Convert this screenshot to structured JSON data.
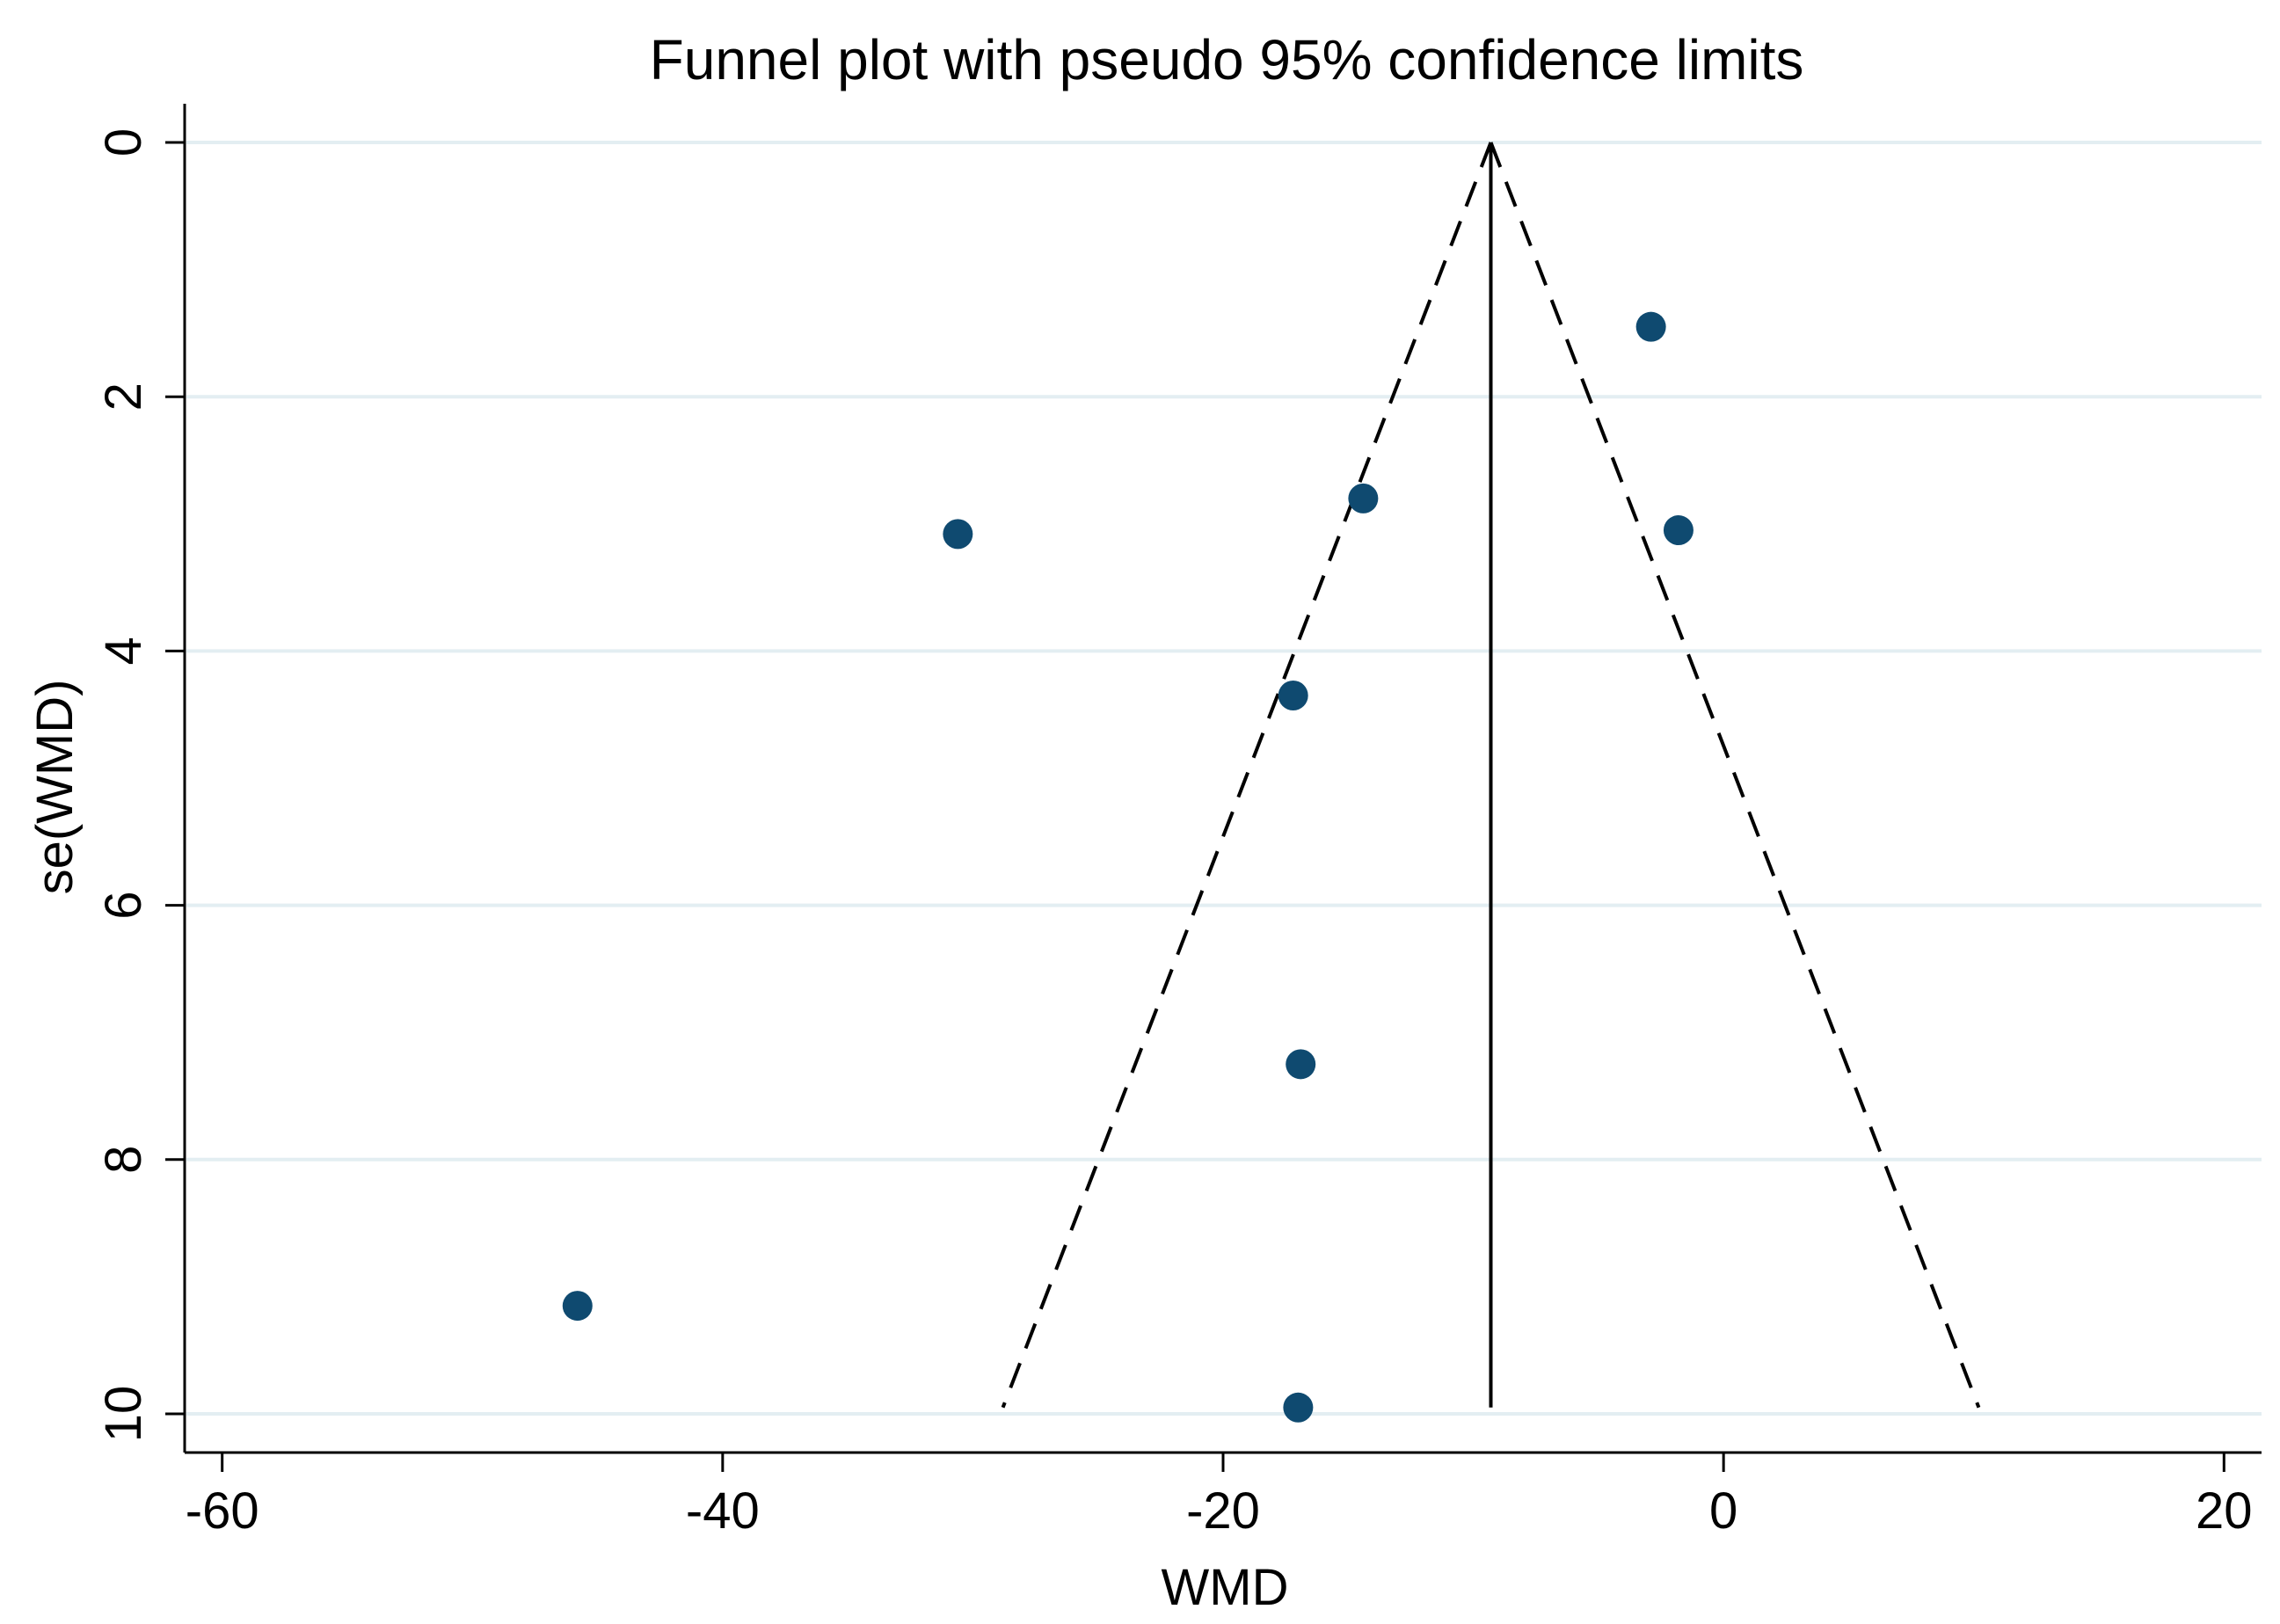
{
  "chart_data": {
    "type": "scatter",
    "title": "Funnel plot with pseudo 95% confidence limits",
    "xlabel": "WMD",
    "ylabel": "se(WMD)",
    "xlim": [
      -61.5,
      21.5
    ],
    "ylim": [
      0,
      10.3
    ],
    "y_reversed": true,
    "x_ticks": [
      -60,
      -40,
      -20,
      0,
      20
    ],
    "x_tick_labels": [
      "-60",
      "-40",
      "-20",
      "0",
      "20"
    ],
    "y_ticks": [
      0,
      2,
      4,
      6,
      8,
      10
    ],
    "y_tick_labels": [
      "0",
      "2",
      "4",
      "6",
      "8",
      "10"
    ],
    "grid": "horizontal",
    "legend": "none",
    "series": [
      {
        "points": [
          {
            "x": -2.9,
            "y": 1.45
          },
          {
            "x": -14.4,
            "y": 2.8
          },
          {
            "x": -1.8,
            "y": 3.05
          },
          {
            "x": -30.6,
            "y": 3.08
          },
          {
            "x": -17.2,
            "y": 4.35
          },
          {
            "x": -16.9,
            "y": 7.25
          },
          {
            "x": -45.8,
            "y": 9.15
          },
          {
            "x": -17.0,
            "y": 9.95
          }
        ]
      }
    ],
    "pooled_estimate": -9.3,
    "ci_lines": {
      "apex": {
        "x": -9.3,
        "y": 0
      },
      "left_bottom": {
        "x": -28.8,
        "y": 9.95
      },
      "right_bottom": {
        "x": 10.2,
        "y": 9.95
      }
    },
    "colors": {
      "points": "#0f4a70",
      "grid": "#e3eef2",
      "axis": "#000000"
    }
  }
}
